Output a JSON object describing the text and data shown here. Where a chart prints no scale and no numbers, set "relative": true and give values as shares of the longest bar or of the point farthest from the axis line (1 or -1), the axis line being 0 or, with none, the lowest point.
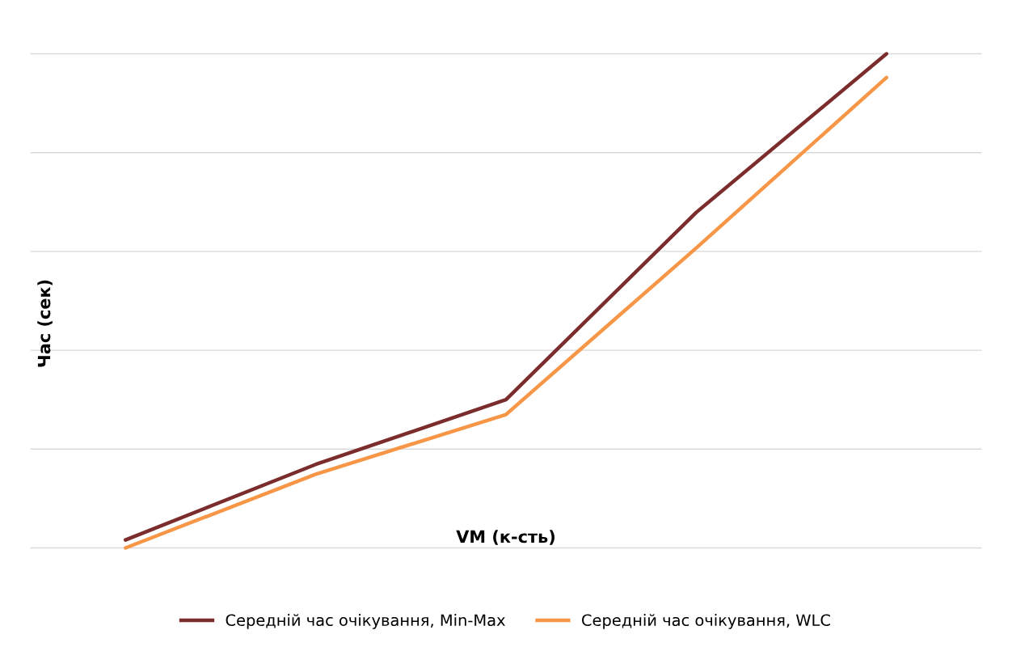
{
  "chart_data": {
    "type": "line",
    "relative": true,
    "xlabel": "VM (к-сть)",
    "ylabel": "Час (сек)",
    "categories": [
      null,
      null,
      null,
      null,
      null
    ],
    "series": [
      {
        "name": "Середній час очікування, Min-Max",
        "color": "#7b2c2c",
        "values": [
          0.016,
          0.169,
          0.3,
          0.679,
          1.0
        ]
      },
      {
        "name": "Середній час очікування, WLC",
        "color": "#f79646",
        "values": [
          0,
          0.149,
          0.27,
          0.607,
          0.952
        ]
      }
    ],
    "grid": "y",
    "legend": "bottom",
    "tick_labels": false,
    "line_style": "solid",
    "marker": "none"
  }
}
